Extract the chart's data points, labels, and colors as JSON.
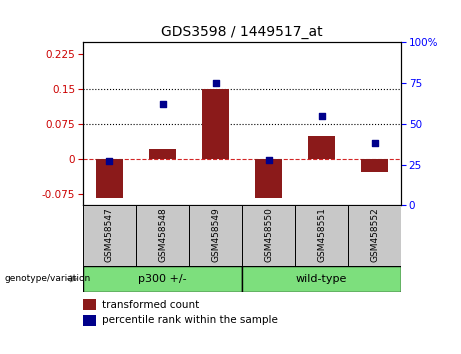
{
  "title": "GDS3598 / 1449517_at",
  "samples": [
    "GSM458547",
    "GSM458548",
    "GSM458549",
    "GSM458550",
    "GSM458551",
    "GSM458552"
  ],
  "transformed_counts": [
    -0.085,
    0.022,
    0.15,
    -0.085,
    0.048,
    -0.028
  ],
  "percentile_ranks": [
    27,
    62,
    75,
    28,
    55,
    38
  ],
  "groups": [
    "p300 +/-",
    "p300 +/-",
    "p300 +/-",
    "wild-type",
    "wild-type",
    "wild-type"
  ],
  "bar_color": "#8b1a1a",
  "dot_color": "#00008b",
  "sample_box_color": "#c8c8c8",
  "group_box_color": "#7ddf7d",
  "ylim_left": [
    -0.1,
    0.25
  ],
  "ylim_right": [
    0,
    100
  ],
  "yticks_left": [
    -0.075,
    0,
    0.075,
    0.15,
    0.225
  ],
  "yticks_right": [
    0,
    25,
    50,
    75,
    100
  ],
  "hlines": [
    0.075,
    0.15
  ],
  "figsize": [
    4.61,
    3.54
  ],
  "dpi": 100
}
